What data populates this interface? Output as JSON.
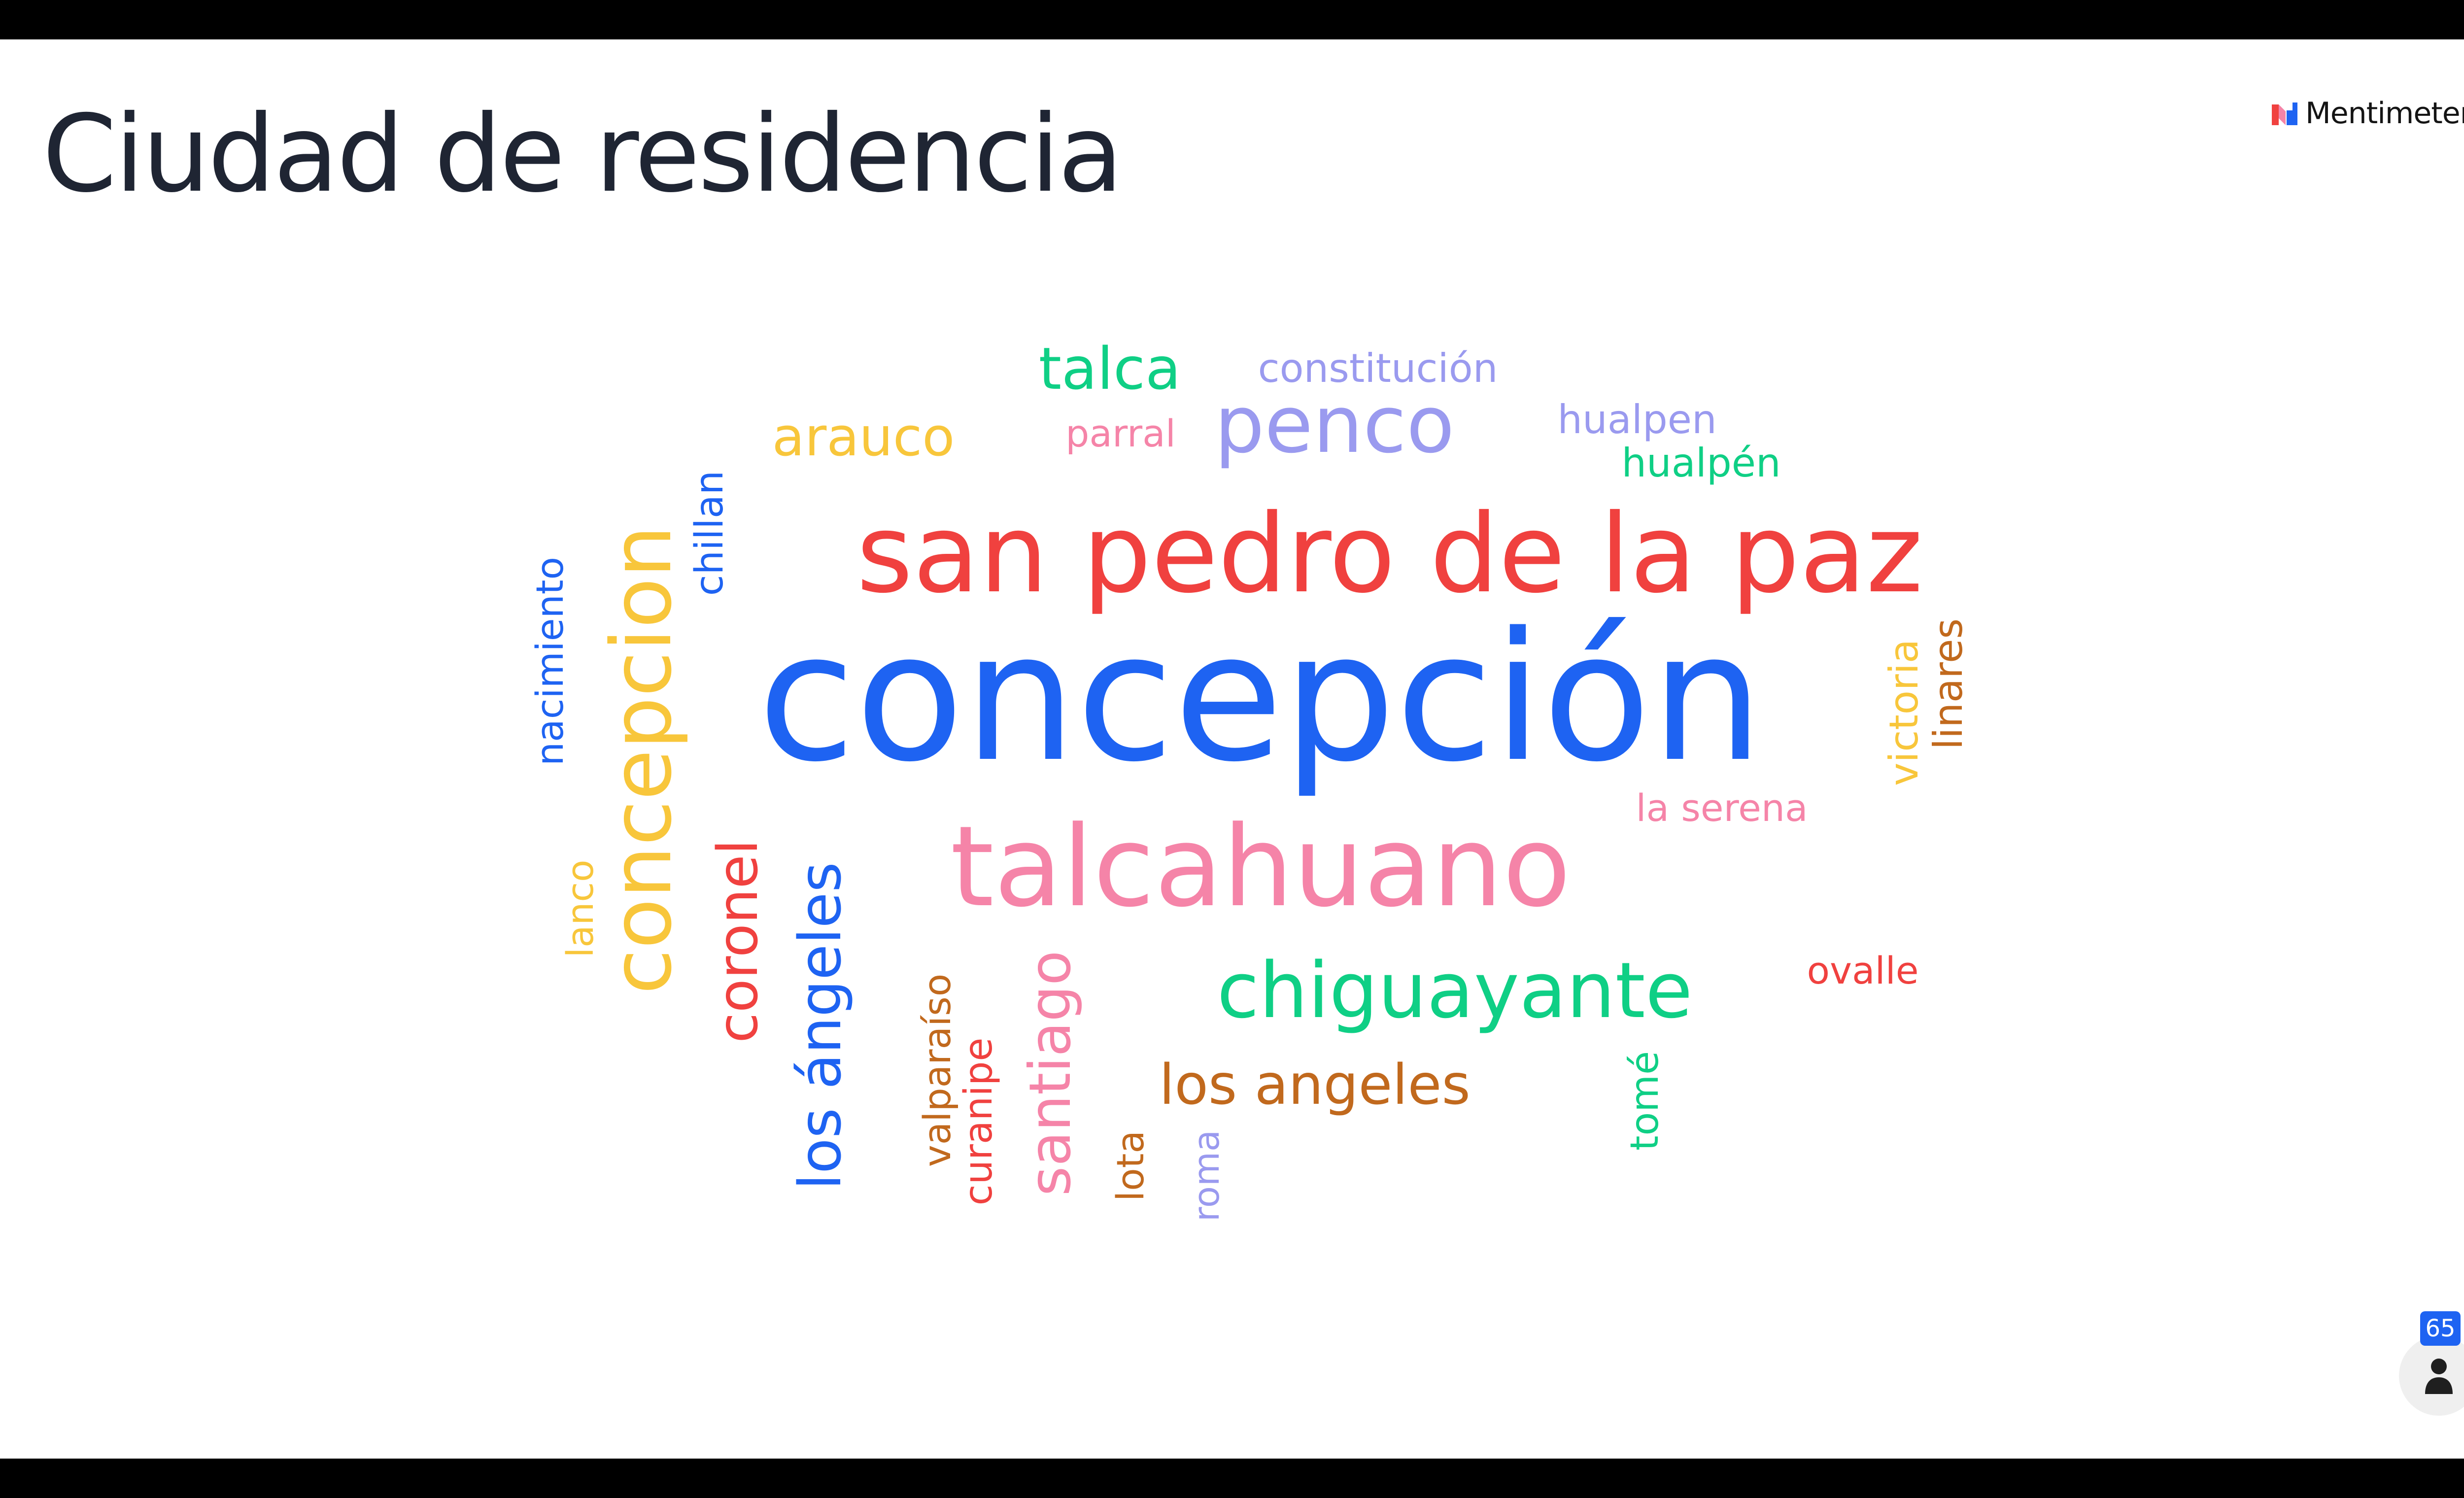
{
  "slide": {
    "title": "Ciudad de residencia",
    "brand_name": "Mentimeter"
  },
  "wordcloud": {
    "words": [
      {
        "text": "concepción",
        "color": "blue",
        "orientation": "horizontal"
      },
      {
        "text": "san pedro de la paz",
        "color": "red",
        "orientation": "horizontal"
      },
      {
        "text": "talcahuano",
        "color": "pink",
        "orientation": "horizontal"
      },
      {
        "text": "concepcion",
        "color": "yellow",
        "orientation": "vertical"
      },
      {
        "text": "chiguayante",
        "color": "green",
        "orientation": "horizontal"
      },
      {
        "text": "penco",
        "color": "purple",
        "orientation": "horizontal"
      },
      {
        "text": "los ángeles",
        "color": "blue",
        "orientation": "vertical"
      },
      {
        "text": "coronel",
        "color": "red",
        "orientation": "vertical"
      },
      {
        "text": "santiago",
        "color": "pink",
        "orientation": "vertical"
      },
      {
        "text": "los angeles",
        "color": "brown",
        "orientation": "horizontal"
      },
      {
        "text": "talca",
        "color": "green",
        "orientation": "horizontal"
      },
      {
        "text": "arauco",
        "color": "yellow",
        "orientation": "horizontal"
      },
      {
        "text": "constitución",
        "color": "purple",
        "orientation": "horizontal"
      },
      {
        "text": "parral",
        "color": "pink",
        "orientation": "horizontal"
      },
      {
        "text": "hualpen",
        "color": "purple",
        "orientation": "horizontal"
      },
      {
        "text": "hualpén",
        "color": "green",
        "orientation": "horizontal"
      },
      {
        "text": "chillan",
        "color": "blue",
        "orientation": "vertical"
      },
      {
        "text": "nacimiento",
        "color": "blue",
        "orientation": "vertical"
      },
      {
        "text": "lanco",
        "color": "yellow",
        "orientation": "vertical"
      },
      {
        "text": "victoria",
        "color": "yellow",
        "orientation": "vertical"
      },
      {
        "text": "linares",
        "color": "brown",
        "orientation": "vertical"
      },
      {
        "text": "la serena",
        "color": "pink",
        "orientation": "horizontal"
      },
      {
        "text": "ovalle",
        "color": "red",
        "orientation": "horizontal"
      },
      {
        "text": "tomé",
        "color": "green",
        "orientation": "vertical"
      },
      {
        "text": "valparaíso",
        "color": "brown",
        "orientation": "vertical"
      },
      {
        "text": "curanipe",
        "color": "red",
        "orientation": "vertical"
      },
      {
        "text": "lota",
        "color": "brown",
        "orientation": "vertical"
      },
      {
        "text": "roma",
        "color": "purple",
        "orientation": "vertical"
      }
    ]
  },
  "participants": {
    "count": "65",
    "icon": "person-icon"
  },
  "colors": {
    "blue": "#1e63f2",
    "red": "#f0413f",
    "pink": "#f584a8",
    "green": "#0fcf85",
    "yellow": "#f8c63b",
    "purple": "#9a9aef",
    "brown": "#c1691d",
    "title": "#1f2533",
    "background": "#ffffff"
  }
}
